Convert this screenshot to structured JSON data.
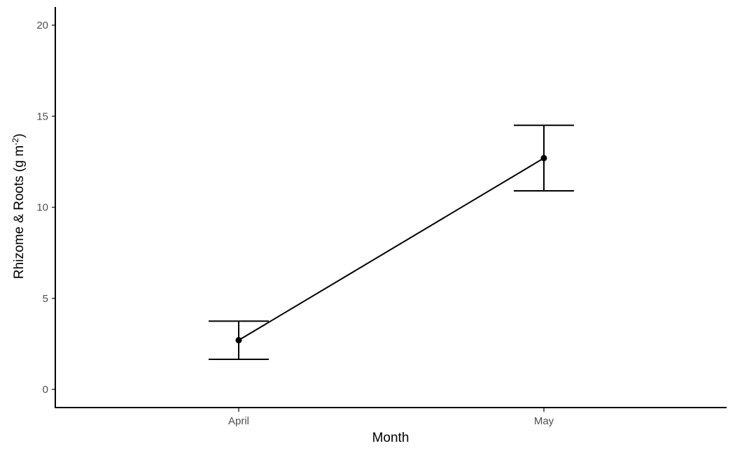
{
  "chart_data": {
    "type": "line",
    "categories": [
      "April",
      "May"
    ],
    "values": [
      2.7,
      12.7
    ],
    "error_lower": [
      1.65,
      10.9
    ],
    "error_upper": [
      3.75,
      14.5
    ],
    "xlabel": "Month",
    "ylabel": "Rhizome & Roots (g m",
    "ylabel_superscript": "-2",
    "ylabel_suffix": ")",
    "ylim": [
      -1,
      21
    ],
    "yticks": [
      0,
      5,
      10,
      15,
      20
    ],
    "grid": false,
    "legend": "none"
  }
}
